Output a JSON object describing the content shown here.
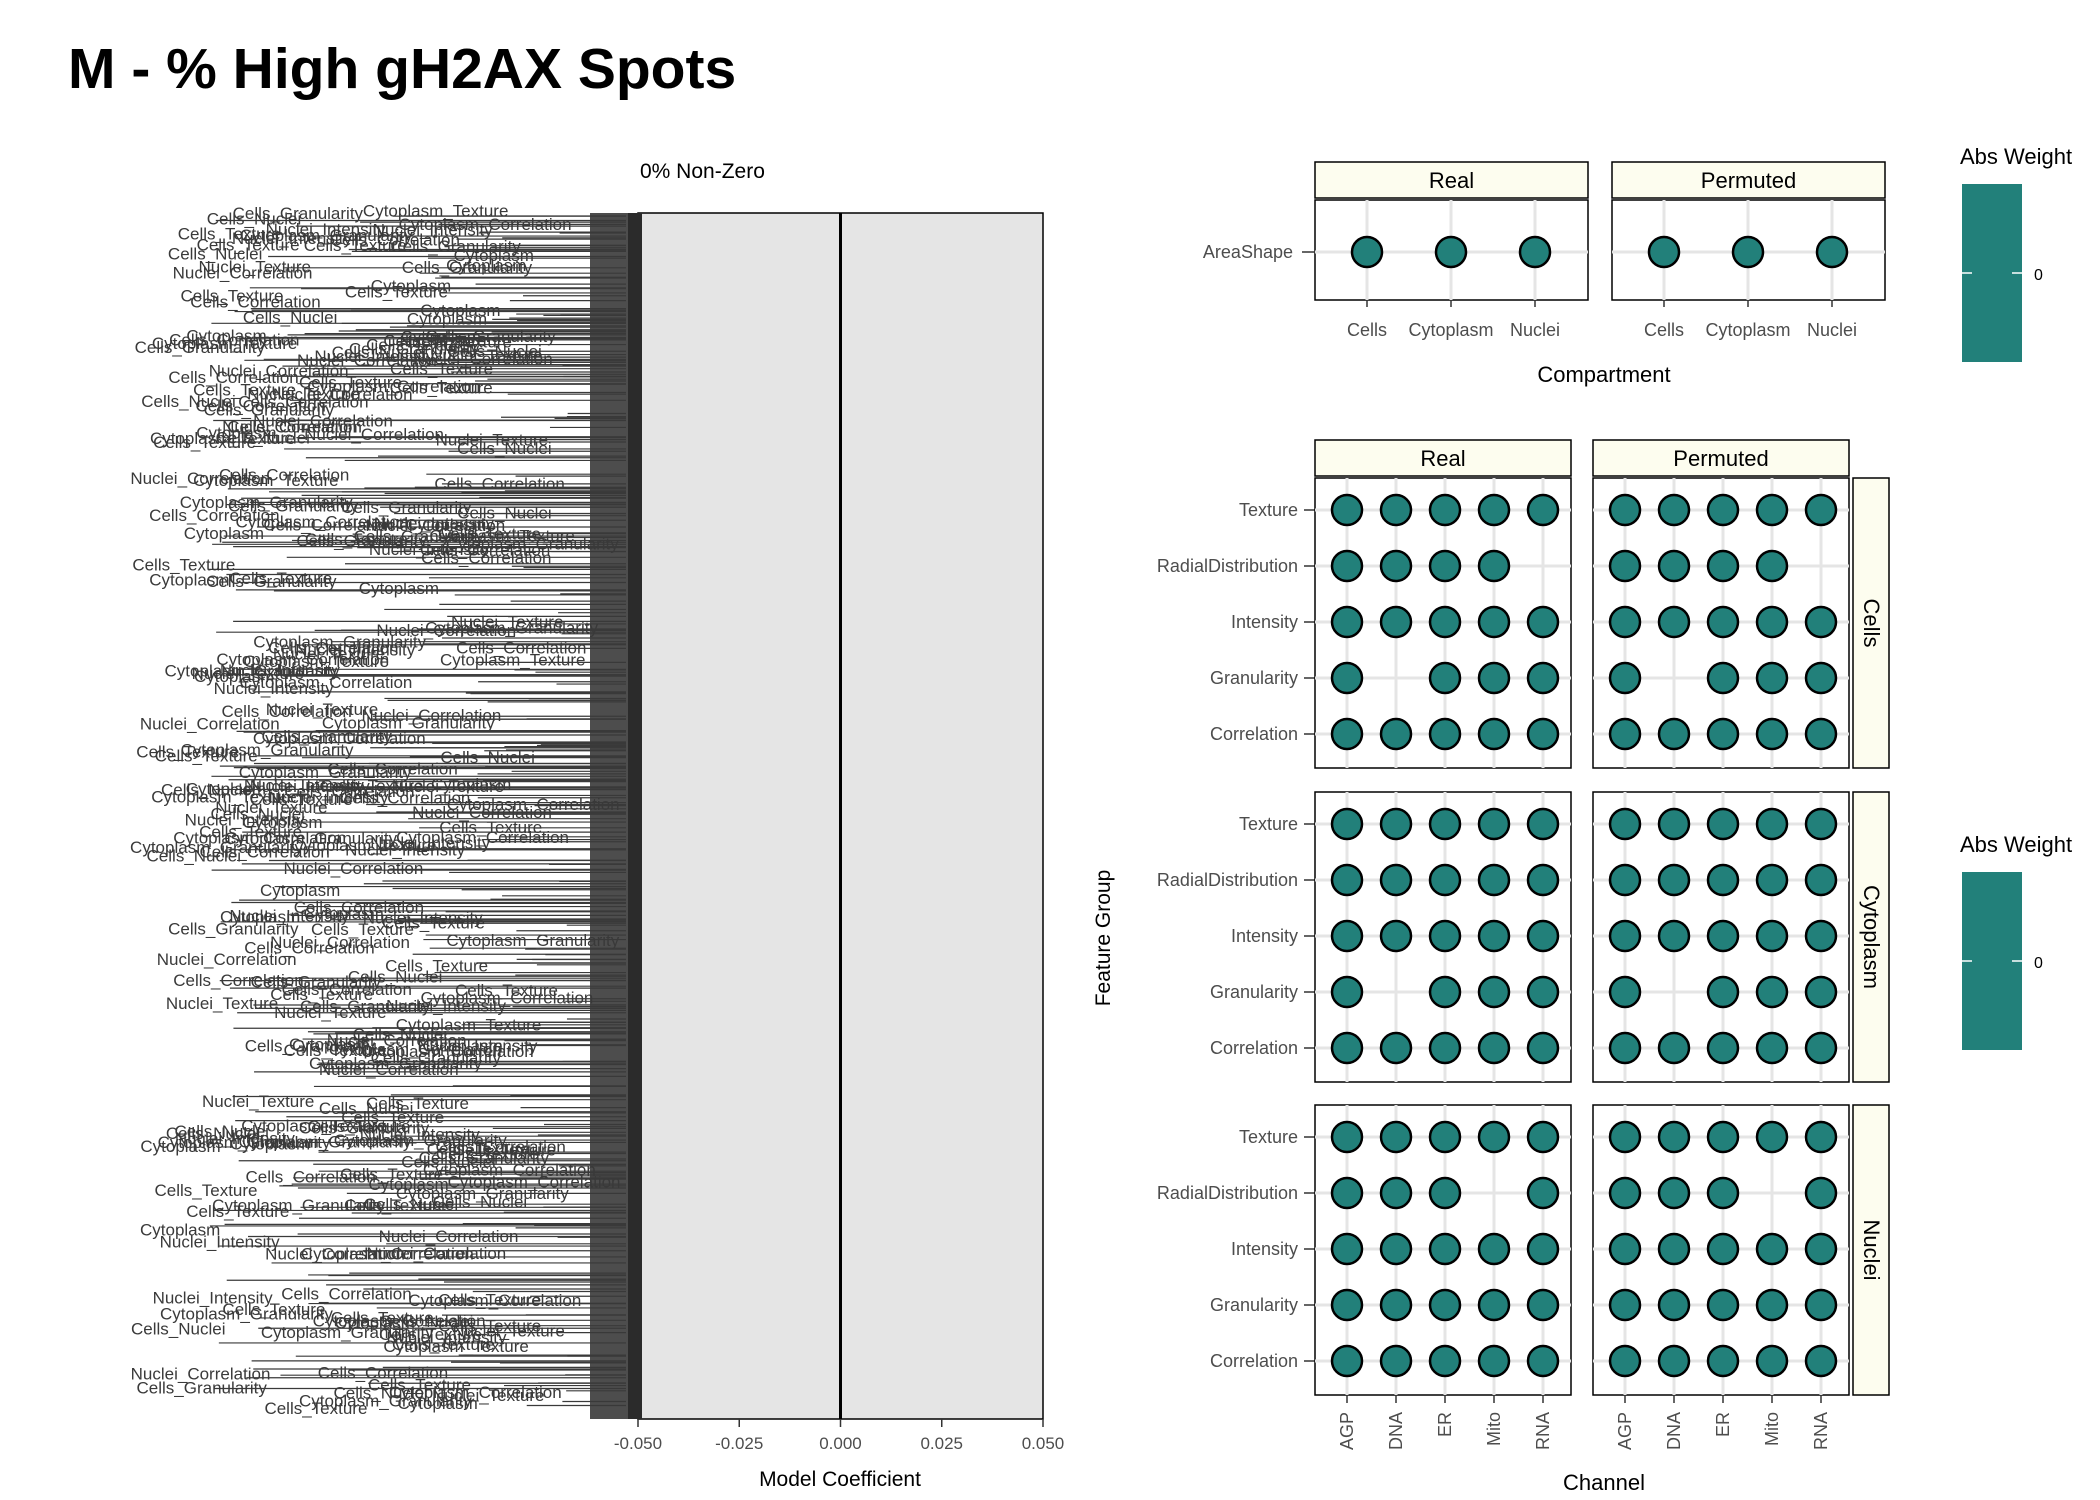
{
  "title": "M - % High gH2AX Spots",
  "colors": {
    "fill": "#22807a",
    "strip": "#fdfdef",
    "panel_bg": "#e5e5e5",
    "grid": "#e5e5e5"
  },
  "chart_data": [
    {
      "type": "bar",
      "subtitle": "0% Non-Zero",
      "xlabel": "Model Coefficient",
      "xlim": [
        -0.05,
        0.05
      ],
      "xticks": [
        "-0.050",
        "-0.025",
        "0.000",
        "0.025",
        "0.050"
      ],
      "zero_line": 0.0,
      "values_note": "all coefficients are zero",
      "visible_feature_labels": [
        "Cytoplasm",
        "Cells_Correlation",
        "Cells_Texture",
        "Cytoplasm_Texture",
        "Cells_Texture",
        "Cells_Granularity",
        "Cytoplasm_Correlation",
        "Cells_Nuclei",
        "Nuclei_Texture",
        "Nuclei_Intensity",
        "Nuclei_Correlation",
        "Cytoplasm_Granularity"
      ]
    },
    {
      "type": "scatter",
      "panel": "compartment",
      "facets": [
        "Real",
        "Permuted"
      ],
      "xlabel": "Compartment",
      "ylabel": "",
      "x_categories": [
        "Cells",
        "Cytoplasm",
        "Nuclei"
      ],
      "y_categories": [
        "AreaShape"
      ],
      "points": [
        {
          "facet": "Real",
          "x": "Cells",
          "y": "AreaShape",
          "weight": 0
        },
        {
          "facet": "Real",
          "x": "Cytoplasm",
          "y": "AreaShape",
          "weight": 0
        },
        {
          "facet": "Real",
          "x": "Nuclei",
          "y": "AreaShape",
          "weight": 0
        },
        {
          "facet": "Permuted",
          "x": "Cells",
          "y": "AreaShape",
          "weight": 0
        },
        {
          "facet": "Permuted",
          "x": "Cytoplasm",
          "y": "AreaShape",
          "weight": 0
        },
        {
          "facet": "Permuted",
          "x": "Nuclei",
          "y": "AreaShape",
          "weight": 0
        }
      ],
      "legend": {
        "title": "Abs Weight",
        "tick": "0"
      }
    },
    {
      "type": "scatter",
      "panel": "channel",
      "col_facets": [
        "Real",
        "Permuted"
      ],
      "row_facets": [
        "Cells",
        "Cytoplasm",
        "Nuclei"
      ],
      "xlabel": "Channel",
      "ylabel": "Feature Group",
      "x_categories": [
        "AGP",
        "DNA",
        "ER",
        "Mito",
        "RNA"
      ],
      "y_categories": [
        "Correlation",
        "Granularity",
        "Intensity",
        "RadialDistribution",
        "Texture"
      ],
      "presence": {
        "Cells": {
          "Texture": [
            "AGP",
            "DNA",
            "ER",
            "Mito",
            "RNA"
          ],
          "RadialDistribution": [
            "AGP",
            "DNA",
            "ER",
            "Mito"
          ],
          "Intensity": [
            "AGP",
            "DNA",
            "ER",
            "Mito",
            "RNA"
          ],
          "Granularity": [
            "AGP",
            "ER",
            "Mito",
            "RNA"
          ],
          "Correlation": [
            "AGP",
            "DNA",
            "ER",
            "Mito",
            "RNA"
          ]
        },
        "Cytoplasm": {
          "Texture": [
            "AGP",
            "DNA",
            "ER",
            "Mito",
            "RNA"
          ],
          "RadialDistribution": [
            "AGP",
            "DNA",
            "ER",
            "Mito",
            "RNA"
          ],
          "Intensity": [
            "AGP",
            "DNA",
            "ER",
            "Mito",
            "RNA"
          ],
          "Granularity": [
            "AGP",
            "ER",
            "Mito",
            "RNA"
          ],
          "Correlation": [
            "AGP",
            "DNA",
            "ER",
            "Mito",
            "RNA"
          ]
        },
        "Nuclei": {
          "Texture": [
            "AGP",
            "DNA",
            "ER",
            "Mito",
            "RNA"
          ],
          "RadialDistribution": [
            "AGP",
            "DNA",
            "ER",
            "RNA"
          ],
          "Intensity": [
            "AGP",
            "DNA",
            "ER",
            "Mito",
            "RNA"
          ],
          "Granularity": [
            "AGP",
            "DNA",
            "ER",
            "Mito",
            "RNA"
          ],
          "Correlation": [
            "AGP",
            "DNA",
            "ER",
            "Mito",
            "RNA"
          ]
        }
      },
      "weight": 0,
      "legend": {
        "title": "Abs Weight",
        "tick": "0"
      }
    }
  ]
}
